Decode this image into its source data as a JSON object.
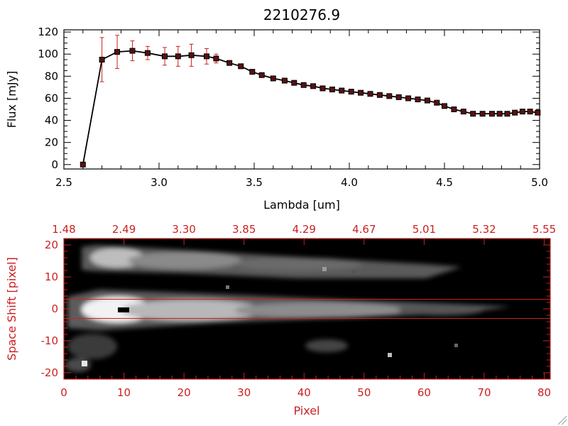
{
  "colors": {
    "axis_top": "#000000",
    "axis_bottom": "#cc2020",
    "spectrum_line": "#000000",
    "error_bars": "#cc2020",
    "marker_fill": "#5a1010",
    "extraction_lines": "#cc2020"
  },
  "chart_data": [
    {
      "type": "line",
      "title": "2210276.9",
      "xlabel": "Lambda [um]",
      "ylabel": "Flux [mJy]",
      "xlim": [
        2.5,
        5.0
      ],
      "ylim": [
        -4,
        122
      ],
      "xticks": [
        2.5,
        3.0,
        3.5,
        4.0,
        4.5,
        5.0
      ],
      "xtick_labels": [
        "2.5",
        "3.0",
        "3.5",
        "4.0",
        "4.5",
        "5.0"
      ],
      "yticks": [
        0,
        20,
        40,
        60,
        80,
        100,
        120
      ],
      "ytick_labels": [
        "0",
        "20",
        "40",
        "60",
        "80",
        "100",
        "120"
      ],
      "grid": false,
      "legend": "none",
      "series": [
        {
          "x": [
            2.6,
            2.7,
            2.78,
            2.86,
            2.94,
            3.03,
            3.1,
            3.17,
            3.25,
            3.3,
            3.37,
            3.43,
            3.49,
            3.54,
            3.6,
            3.66,
            3.71,
            3.76,
            3.81,
            3.86,
            3.91,
            3.96,
            4.01,
            4.06,
            4.11,
            4.16,
            4.21,
            4.26,
            4.31,
            4.36,
            4.41,
            4.46,
            4.5,
            4.55,
            4.6,
            4.65,
            4.7,
            4.75,
            4.79,
            4.83,
            4.87,
            4.91,
            4.95,
            4.99
          ],
          "y": [
            0,
            95,
            102,
            103,
            101,
            98,
            98,
            99,
            98,
            96,
            92,
            89,
            84,
            81,
            78,
            76,
            74,
            72,
            71,
            69,
            68,
            67,
            66,
            65,
            64,
            63,
            62,
            61,
            60,
            59,
            58,
            56,
            53,
            50,
            48,
            46,
            46,
            46,
            46,
            46,
            47,
            48,
            48,
            47
          ],
          "yerr": [
            0,
            20,
            15,
            9,
            6,
            8,
            9,
            10,
            7,
            4,
            2,
            1.5,
            1,
            1,
            1,
            1,
            1,
            1,
            1,
            1,
            1,
            1,
            1,
            1,
            1,
            1,
            1,
            1,
            1,
            1,
            1,
            1,
            1,
            1,
            1,
            1,
            1,
            1,
            1,
            1,
            1,
            1,
            1,
            1
          ]
        }
      ]
    },
    {
      "type": "heatmap",
      "xlabel": "Pixel",
      "ylabel": "Space Shift [pixel]",
      "xlim": [
        0,
        81
      ],
      "ylim": [
        -22,
        22
      ],
      "xticks": [
        0,
        10,
        20,
        30,
        40,
        50,
        60,
        70,
        80
      ],
      "xtick_labels": [
        "0",
        "10",
        "20",
        "30",
        "40",
        "50",
        "60",
        "70",
        "80"
      ],
      "yticks": [
        -20,
        -10,
        0,
        10,
        20
      ],
      "ytick_labels": [
        "-20",
        "-10",
        "0",
        "10",
        "20"
      ],
      "top_axis_ticks": [
        0,
        10,
        20,
        30,
        40,
        50,
        60,
        70,
        80
      ],
      "top_axis_labels": [
        "1.48",
        "2.49",
        "3.30",
        "3.85",
        "4.29",
        "4.67",
        "5.01",
        "5.32",
        "5.55"
      ],
      "extraction_lines": [
        3,
        -3
      ],
      "grid": false,
      "legend": "none"
    }
  ]
}
